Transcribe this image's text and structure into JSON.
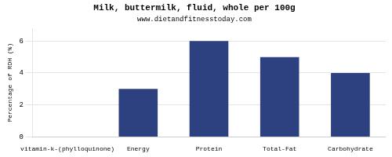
{
  "chart_data": {
    "type": "bar",
    "title": "Milk, buttermilk, fluid, whole per 100g",
    "subtitle": "www.dietandfitnesstoday.com",
    "categories": [
      "vitamin-k-(phylloquinone)",
      "Energy",
      "Protein",
      "Total-Fat",
      "Carbohydrate"
    ],
    "values": [
      0,
      3,
      6,
      5,
      4
    ],
    "color": "#2d4080",
    "ylabel": "Percentage of RDH (%)",
    "ylim": [
      0,
      6.8
    ],
    "yticks": [
      0,
      2,
      4,
      6
    ],
    "grid": true
  }
}
